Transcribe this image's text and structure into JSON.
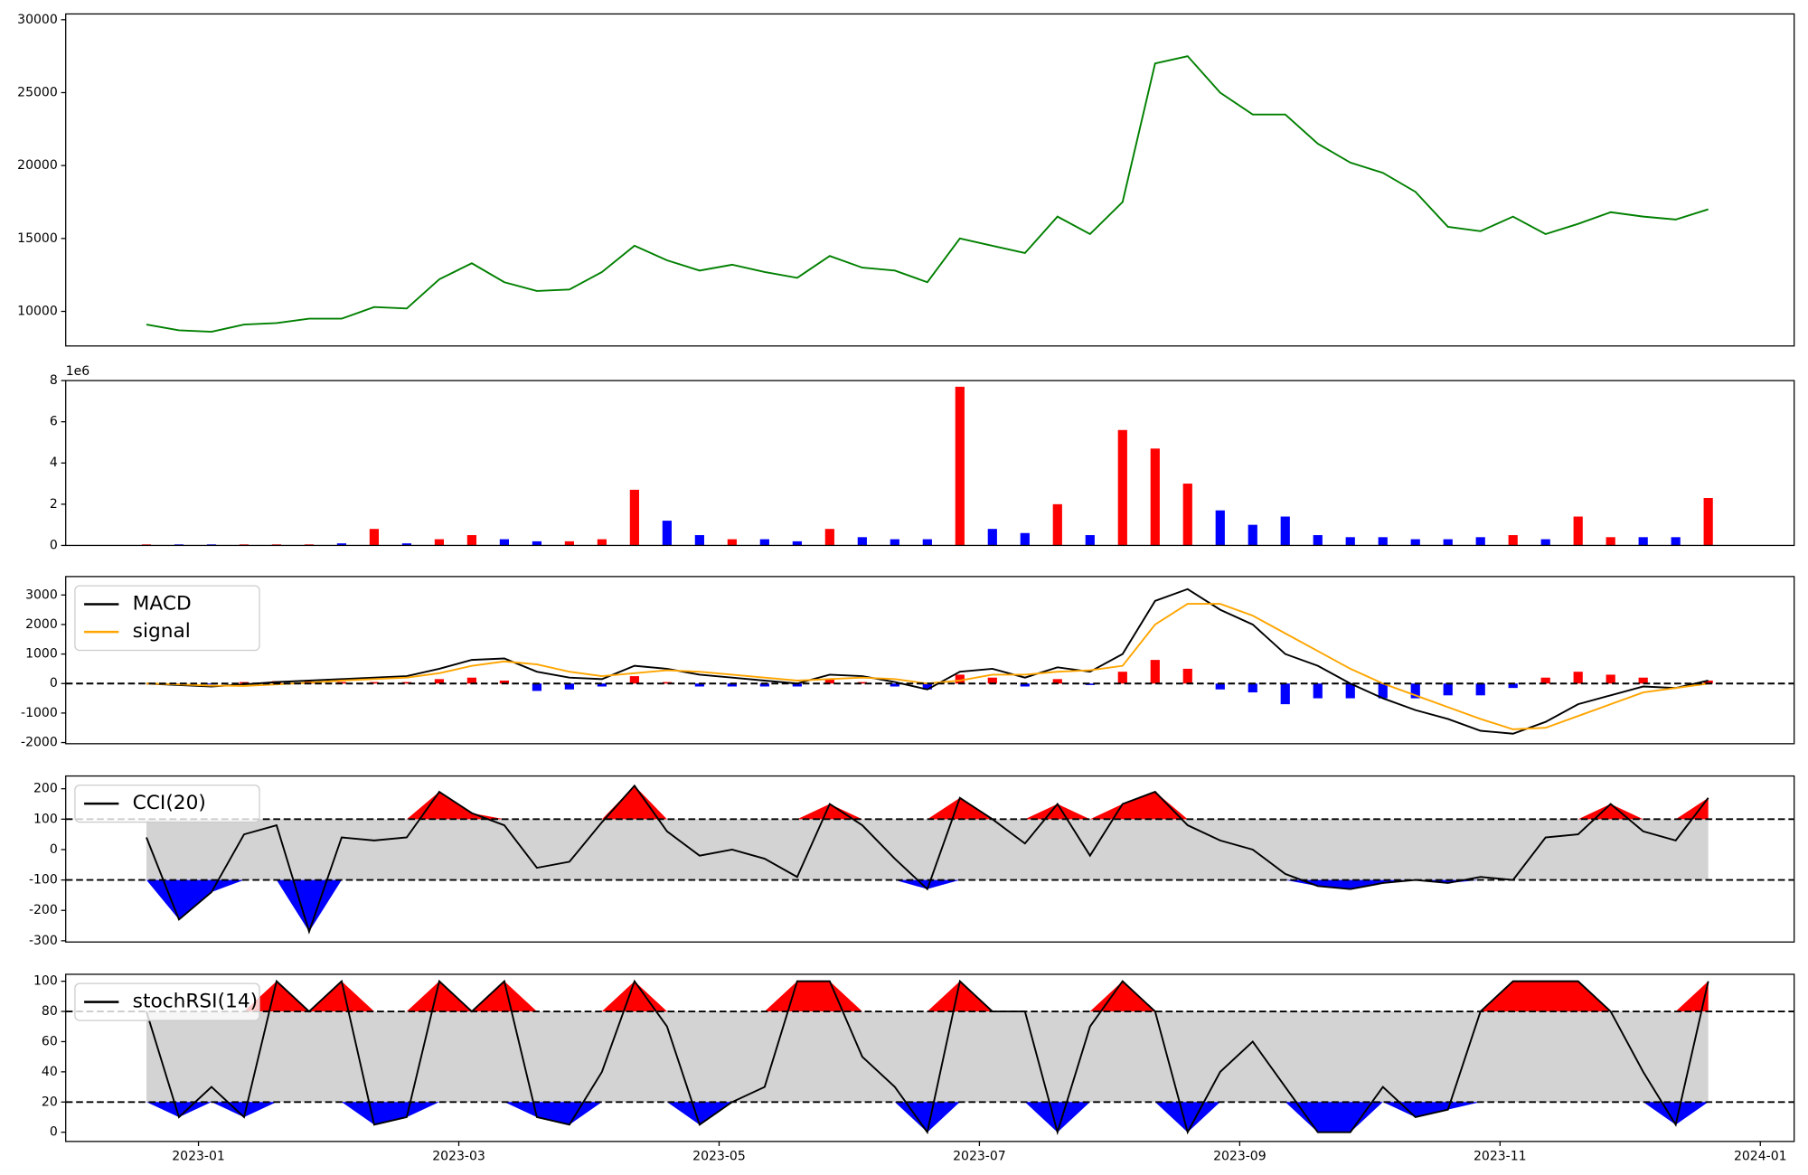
{
  "chart_data": [
    {
      "type": "line",
      "x": [
        0.6,
        0.85,
        1.1,
        1.35,
        1.6,
        1.85,
        2.1,
        2.35,
        2.6,
        2.85,
        3.1,
        3.35,
        3.6,
        3.85,
        4.1,
        4.35,
        4.6,
        4.85,
        5.1,
        5.35,
        5.6,
        5.85,
        6.1,
        6.35,
        6.6,
        6.85,
        7.1,
        7.35,
        7.6,
        7.85,
        8.1,
        8.35,
        8.6,
        8.85,
        9.1,
        9.35,
        9.6,
        9.85,
        10.1,
        10.35,
        10.6,
        10.85,
        11.1,
        11.35,
        11.6,
        11.85,
        12.1,
        12.35,
        12.6
      ],
      "xlim": [
        -0.02,
        13.26
      ],
      "ylim": [
        7628,
        30395
      ],
      "yticks": [
        10000,
        15000,
        20000,
        25000,
        30000
      ],
      "series": [
        {
          "color": "#008000",
          "values": [
            9100,
            8700,
            8600,
            9100,
            9200,
            9500,
            9500,
            10300,
            10200,
            12200,
            13300,
            12000,
            11400,
            11500,
            12700,
            14500,
            13500,
            12800,
            13200,
            12700,
            12300,
            13800,
            13000,
            12800,
            12000,
            15000,
            14500,
            14000,
            16500,
            15300,
            17500,
            27000,
            27500,
            25000,
            23500,
            23500,
            21500,
            20200,
            19500,
            18200,
            15800,
            15500,
            16500,
            15300,
            16000,
            16800,
            16500,
            16300,
            17000
          ]
        }
      ]
    },
    {
      "type": "bar",
      "offset_label": "1e6",
      "ylim": [
        0,
        8
      ],
      "yticks": [
        0,
        2,
        4,
        6,
        8
      ],
      "values": [
        0.05,
        0.05,
        0.05,
        0.05,
        0.05,
        0.05,
        0.1,
        0.8,
        0.1,
        0.3,
        0.5,
        0.3,
        0.2,
        0.2,
        0.3,
        2.7,
        1.2,
        0.5,
        0.3,
        0.3,
        0.2,
        0.8,
        0.4,
        0.3,
        0.3,
        7.7,
        0.8,
        0.6,
        2.0,
        0.5,
        5.6,
        4.7,
        3.0,
        1.7,
        1.0,
        1.4,
        0.5,
        0.4,
        0.4,
        0.3,
        0.3,
        0.4,
        0.5,
        0.3,
        1.4,
        0.4,
        0.4,
        0.4,
        2.3
      ],
      "colors": [
        "red",
        "blue",
        "blue",
        "red",
        "red",
        "red",
        "blue",
        "red",
        "blue",
        "red",
        "red",
        "blue",
        "blue",
        "red",
        "red",
        "red",
        "blue",
        "blue",
        "red",
        "blue",
        "blue",
        "red",
        "blue",
        "blue",
        "blue",
        "red",
        "blue",
        "blue",
        "red",
        "blue",
        "red",
        "red",
        "red",
        "blue",
        "blue",
        "blue",
        "blue",
        "blue",
        "blue",
        "blue",
        "blue",
        "blue",
        "red",
        "blue",
        "red",
        "red",
        "blue",
        "blue",
        "red"
      ]
    },
    {
      "type": "line",
      "legend": "upper left",
      "ylim": [
        -2039,
        3625
      ],
      "yticks": [
        -2000,
        -1000,
        0,
        1000,
        2000,
        3000
      ],
      "hlines": [
        0
      ],
      "series": [
        {
          "name": "MACD",
          "color": "#000000",
          "values": [
            0,
            -50,
            -100,
            -30,
            50,
            100,
            150,
            200,
            250,
            500,
            800,
            850,
            400,
            200,
            150,
            600,
            500,
            300,
            200,
            100,
            0,
            300,
            250,
            50,
            -200,
            400,
            500,
            200,
            550,
            400,
            1000,
            2800,
            3200,
            2500,
            2000,
            1000,
            600,
            0,
            -500,
            -900,
            -1200,
            -1600,
            -1700,
            -1300,
            -700,
            -400,
            -100,
            -150,
            100
          ]
        },
        {
          "name": "signal",
          "color": "#ffa500",
          "values": [
            0,
            -30,
            -70,
            -80,
            -30,
            30,
            100,
            150,
            200,
            350,
            600,
            750,
            650,
            400,
            250,
            350,
            450,
            400,
            300,
            200,
            100,
            150,
            200,
            150,
            0,
            100,
            300,
            300,
            400,
            450,
            600,
            2000,
            2700,
            2700,
            2300,
            1700,
            1100,
            500,
            0,
            -400,
            -800,
            -1200,
            -1550,
            -1500,
            -1100,
            -700,
            -300,
            -150,
            0
          ]
        }
      ],
      "histogram": {
        "pos_color": "#ff0000",
        "neg_color": "#0000ff",
        "values": [
          0,
          -20,
          -30,
          50,
          80,
          70,
          50,
          50,
          50,
          150,
          200,
          100,
          -250,
          -200,
          -100,
          250,
          50,
          -100,
          -100,
          -100,
          -100,
          150,
          50,
          -100,
          -200,
          300,
          200,
          -100,
          150,
          -50,
          400,
          800,
          500,
          -200,
          -300,
          -700,
          -500,
          -500,
          -500,
          -500,
          -400,
          -400,
          -150,
          200,
          400,
          300,
          200,
          0,
          100
        ]
      }
    },
    {
      "type": "line",
      "legend": "upper left",
      "ylim": [
        -304,
        242
      ],
      "yticks": [
        -300,
        -200,
        -100,
        0,
        100,
        200
      ],
      "hlines": [
        -100,
        100
      ],
      "band_color": "#d3d3d3",
      "over_color": "#ff0000",
      "under_color": "#0000ff",
      "series": [
        {
          "name": "CCI(20)",
          "color": "#000000",
          "values": [
            40,
            -230,
            -140,
            50,
            80,
            -270,
            40,
            30,
            40,
            190,
            120,
            80,
            -60,
            -40,
            90,
            210,
            60,
            -20,
            0,
            -30,
            -90,
            150,
            80,
            -30,
            -130,
            170,
            100,
            20,
            150,
            -20,
            150,
            190,
            80,
            30,
            0,
            -80,
            -120,
            -130,
            -110,
            -100,
            -110,
            -90,
            -100,
            40,
            50,
            150,
            60,
            30,
            170
          ]
        }
      ]
    },
    {
      "type": "line",
      "legend": "upper left",
      "ylim": [
        -6.1,
        104.6
      ],
      "yticks": [
        0,
        20,
        40,
        60,
        80,
        100
      ],
      "hlines": [
        20,
        80
      ],
      "band_color": "#d3d3d3",
      "over_color": "#ff0000",
      "under_color": "#0000ff",
      "xticks": [
        {
          "value": 1,
          "label": "2023-01"
        },
        {
          "value": 3,
          "label": "2023-03"
        },
        {
          "value": 5,
          "label": "2023-05"
        },
        {
          "value": 7,
          "label": "2023-07"
        },
        {
          "value": 9,
          "label": "2023-09"
        },
        {
          "value": 11,
          "label": "2023-11"
        },
        {
          "value": 13,
          "label": "2024-01"
        }
      ],
      "series": [
        {
          "name": "stochRSI(14)",
          "color": "#000000",
          "values": [
            80,
            10,
            30,
            10,
            100,
            80,
            100,
            5,
            10,
            100,
            80,
            100,
            10,
            5,
            40,
            100,
            70,
            5,
            20,
            30,
            100,
            100,
            50,
            30,
            0,
            100,
            80,
            80,
            0,
            70,
            100,
            80,
            0,
            40,
            60,
            30,
            0,
            0,
            30,
            10,
            15,
            80,
            100,
            100,
            100,
            80,
            40,
            5,
            100
          ]
        }
      ]
    }
  ]
}
